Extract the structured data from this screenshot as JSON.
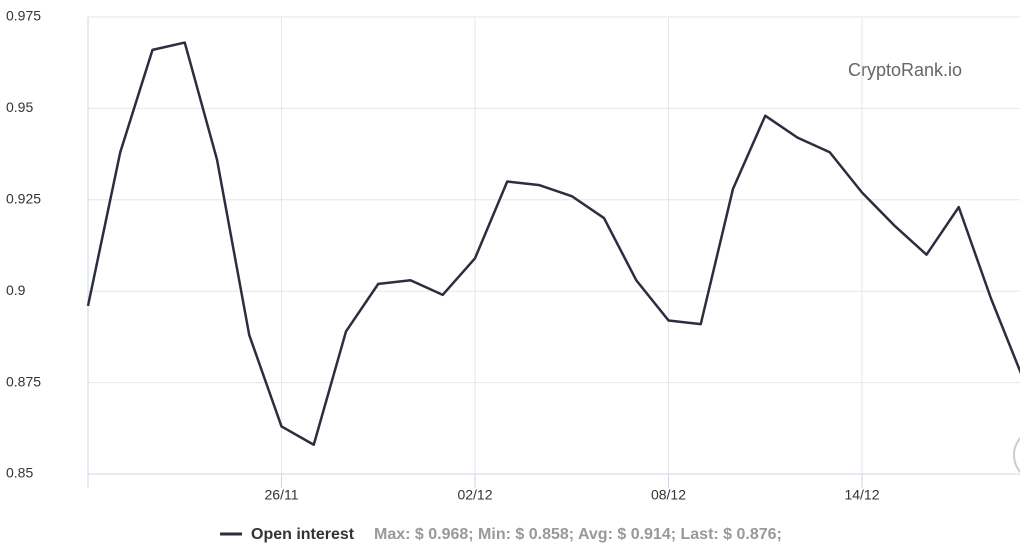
{
  "chart_data": {
    "type": "line",
    "watermark": "CryptoRank.io",
    "categories": [
      null,
      null,
      null,
      null,
      null,
      null,
      "26/11",
      null,
      null,
      null,
      null,
      null,
      "02/12",
      null,
      null,
      null,
      null,
      null,
      "08/12",
      null,
      null,
      null,
      null,
      null,
      "14/12",
      null,
      null,
      null,
      null,
      null
    ],
    "series": [
      {
        "name": "Open interest",
        "color": "#2a2e3f",
        "values": [
          0.896,
          0.938,
          0.966,
          0.968,
          0.936,
          0.888,
          0.863,
          0.858,
          0.889,
          0.902,
          0.903,
          0.899,
          0.909,
          0.93,
          0.929,
          0.926,
          0.92,
          0.903,
          0.892,
          0.891,
          0.928,
          0.948,
          0.942,
          0.938,
          0.927,
          0.918,
          0.91,
          0.923,
          0.898,
          0.876
        ]
      }
    ],
    "legend_summary": "Max: $ 0.968; Min: $ 0.858; Avg: $ 0.914; Last: $ 0.876;",
    "ylim": [
      0.85,
      0.975
    ],
    "yticks": [
      0.85,
      0.875,
      0.9,
      0.925,
      0.95,
      0.975
    ],
    "grid": true
  }
}
